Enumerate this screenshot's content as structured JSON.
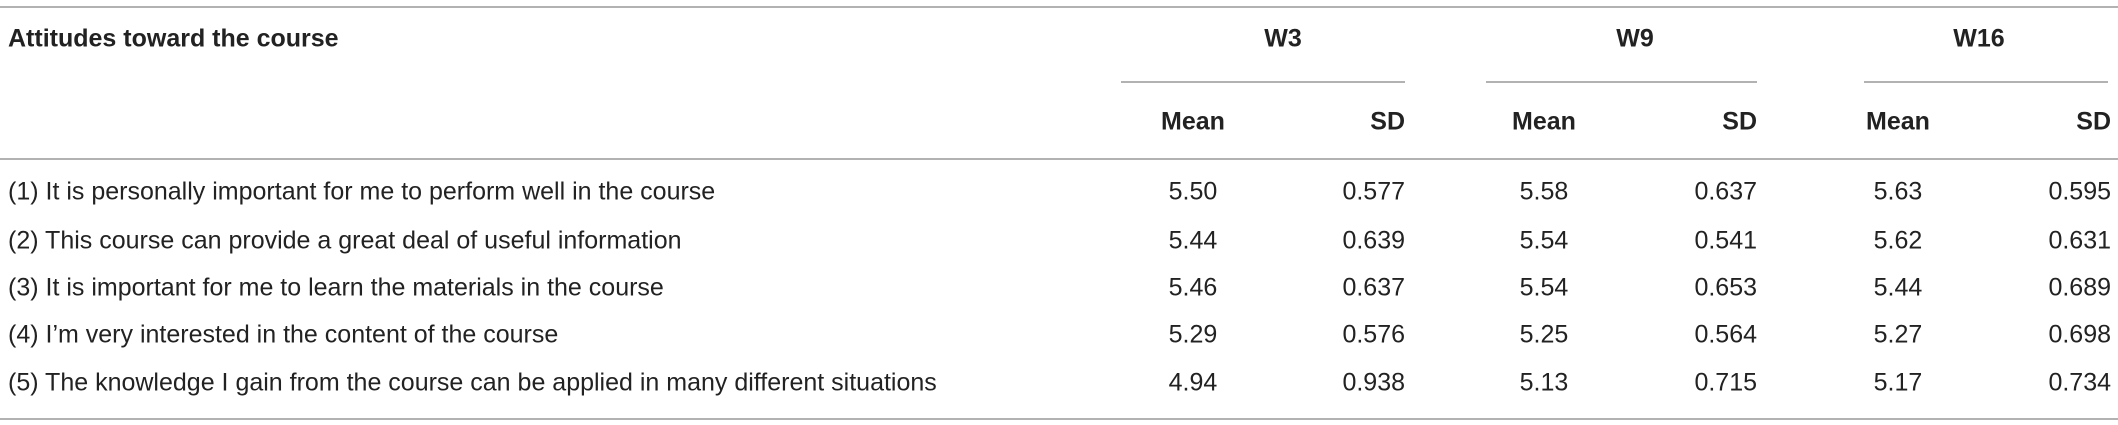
{
  "table": {
    "header": "Attitudes toward the course",
    "groups": [
      "W3",
      "W9",
      "W16"
    ],
    "subheaders": [
      "Mean",
      "SD",
      "Mean",
      "SD",
      "Mean",
      "SD"
    ],
    "rows": [
      [
        "(1) It is personally important for me to perform well in the course",
        "5.50",
        "0.577",
        "5.58",
        "0.637",
        "5.63",
        "0.595"
      ],
      [
        "(2) This course can provide a great deal of useful information",
        "5.44",
        "0.639",
        "5.54",
        "0.541",
        "5.62",
        "0.631"
      ],
      [
        "(3) It is important for me to learn the materials in the course",
        "5.46",
        "0.637",
        "5.54",
        "0.653",
        "5.44",
        "0.689"
      ],
      [
        "(4) I’m very interested in the content of the course",
        "5.29",
        "0.576",
        "5.25",
        "0.564",
        "5.27",
        "0.698"
      ],
      [
        "(5) The knowledge I gain from the course can be applied in many different situations",
        "4.94",
        "0.938",
        "5.13",
        "0.715",
        "5.17",
        "0.734"
      ]
    ]
  }
}
